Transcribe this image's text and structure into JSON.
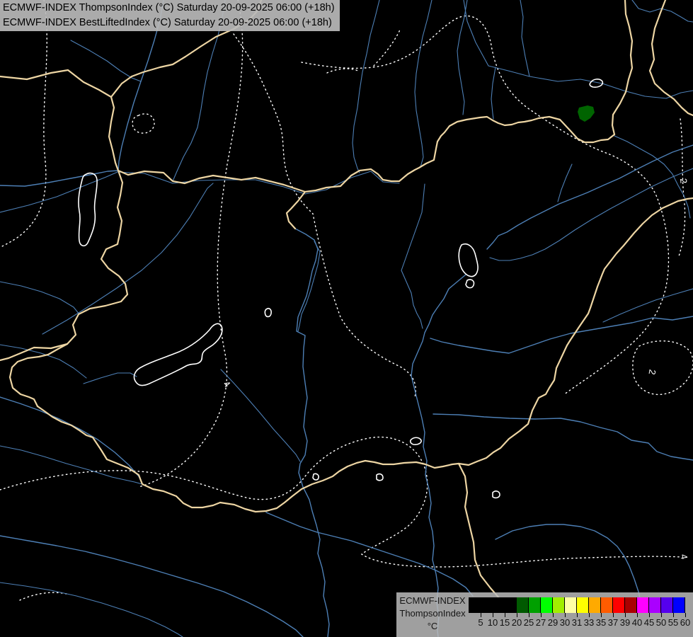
{
  "header": {
    "line1": "ECMWF-INDEX ThompsonIndex (°C) Saturday 20-09-2025 06:00 (+18h)",
    "line2": "ECMWF-INDEX BestLiftedIndex (°C) Saturday 20-09-2025 06:00 (+18h)"
  },
  "legend": {
    "title_line1": "ECMWF-INDEX",
    "title_line2": "ThompsonIndex",
    "unit": "°C",
    "tick_labels": [
      "5",
      "10",
      "15",
      "20",
      "25",
      "27",
      "29",
      "30",
      "31",
      "33",
      "35",
      "37",
      "39",
      "40",
      "45",
      "50",
      "55",
      "60"
    ],
    "cell_colors": [
      "#000000",
      "#000000",
      "#000000",
      "#000000",
      "#005a00",
      "#00a000",
      "#00ff00",
      "#a2ee00",
      "#ffffa6",
      "#ffff00",
      "#ffaa00",
      "#ff5c00",
      "#ff0000",
      "#aa0000",
      "#ff00ff",
      "#aa00ff",
      "#5500ee",
      "#0000ff"
    ]
  },
  "map": {
    "background": "#000000",
    "border_color": "#edd5a3",
    "river_color": "#4d7fb5",
    "contour_color": "#ffffff",
    "lake_outline_color": "#ffffff",
    "index_patch_color": "#006400",
    "contour_labels": [
      {
        "value": "2"
      },
      {
        "value": "2"
      },
      {
        "value": "4"
      },
      {
        "value": "4"
      }
    ]
  }
}
